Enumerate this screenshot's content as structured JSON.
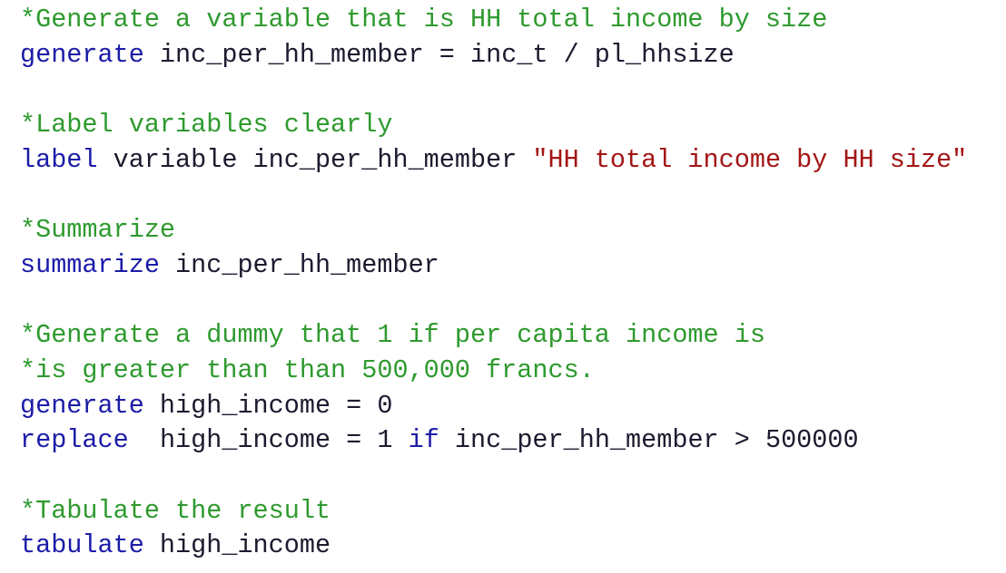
{
  "blocks": [
    [
      [
        {
          "text": "*Generate a variable that is HH total income by size",
          "color": "#2e9a2e"
        }
      ],
      [
        {
          "text": "generate",
          "color": "#1c1ca8"
        },
        {
          "text": " inc_per_hh_member = inc_t / pl_hhsize",
          "color": "#1b1b2f"
        }
      ]
    ],
    [
      [
        {
          "text": "*Label variables clearly",
          "color": "#2e9a2e"
        }
      ],
      [
        {
          "text": "label",
          "color": "#1c1ca8"
        },
        {
          "text": " variable inc_per_hh_member ",
          "color": "#1b1b2f"
        },
        {
          "text": "\"HH total income by HH size\"",
          "color": "#a31515"
        }
      ]
    ],
    [
      [
        {
          "text": "*Summarize",
          "color": "#2e9a2e"
        }
      ],
      [
        {
          "text": "summarize",
          "color": "#1c1ca8"
        },
        {
          "text": " inc_per_hh_member",
          "color": "#1b1b2f"
        }
      ]
    ],
    [
      [
        {
          "text": "*Generate a dummy that 1 if per capita income is",
          "color": "#2e9a2e"
        }
      ],
      [
        {
          "text": "*is greater than than 500,000 francs.",
          "color": "#2e9a2e"
        }
      ],
      [
        {
          "text": "generate",
          "color": "#1c1ca8"
        },
        {
          "text": " high_income = 0",
          "color": "#1b1b2f"
        }
      ],
      [
        {
          "text": "replace",
          "color": "#1c1ca8"
        },
        {
          "text": "  high_income = 1 ",
          "color": "#1b1b2f"
        },
        {
          "text": "if",
          "color": "#1c1ca8"
        },
        {
          "text": " inc_per_hh_member > 500000",
          "color": "#1b1b2f"
        }
      ]
    ],
    [
      [
        {
          "text": "*Tabulate the result",
          "color": "#2e9a2e"
        }
      ],
      [
        {
          "text": "tabulate",
          "color": "#1c1ca8"
        },
        {
          "text": " high_income",
          "color": "#1b1b2f"
        }
      ]
    ]
  ]
}
